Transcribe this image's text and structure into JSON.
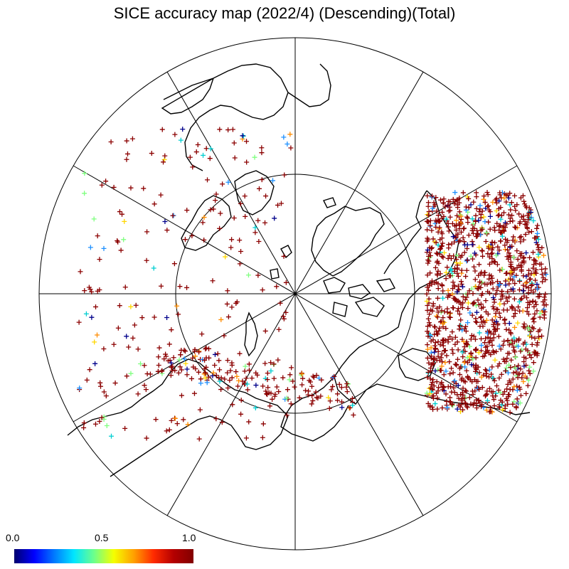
{
  "title": "SICE accuracy map (2022/4) (Descending)(Total)",
  "map": {
    "projection": "north polar stereographic",
    "outline_color": "#000000",
    "graticule_color": "#000000"
  },
  "colorbar": {
    "min_label": "0.0",
    "mid_label": "0.5",
    "max_label": "1.0",
    "colors": [
      "#00006e",
      "#0000ff",
      "#0078ff",
      "#00e6ff",
      "#6cff8c",
      "#f5ff00",
      "#ffa000",
      "#ff2a00",
      "#b40000",
      "#820000"
    ]
  },
  "markers": {
    "dominant_color": "#8b0000",
    "accent_colors": [
      "#00008b",
      "#1e90ff",
      "#00ced1",
      "#7fff7f",
      "#ffd700",
      "#ff8c00"
    ]
  }
}
